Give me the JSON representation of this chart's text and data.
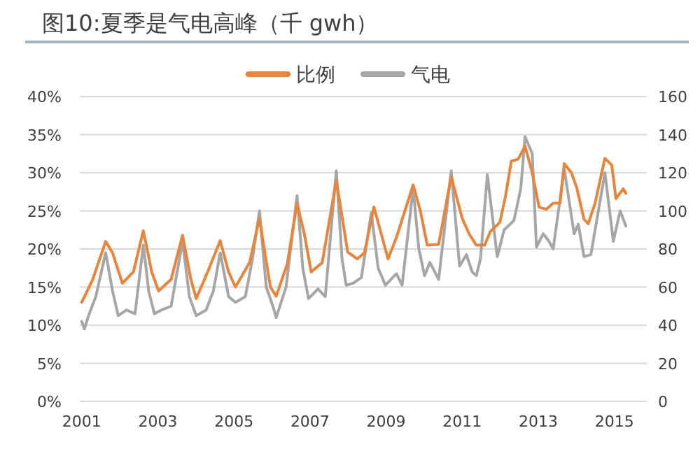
{
  "chart_data": {
    "type": "line",
    "title": "图10:夏季是气电高峰（千 gwh）",
    "xlim": [
      2000.95,
      2015.85
    ],
    "xticks": [
      2001,
      2003,
      2005,
      2007,
      2009,
      2011,
      2013,
      2015
    ],
    "ylim": [
      0,
      40
    ],
    "yticks": [
      {
        "value": 0,
        "label": "0%"
      },
      {
        "value": 5,
        "label": "5%"
      },
      {
        "value": 10,
        "label": "10%"
      },
      {
        "value": 15,
        "label": "15%"
      },
      {
        "value": 20,
        "label": "20%"
      },
      {
        "value": 25,
        "label": "25%"
      },
      {
        "value": 30,
        "label": "30%"
      },
      {
        "value": 35,
        "label": "35%"
      },
      {
        "value": 40,
        "label": "40%"
      }
    ],
    "y2lim": [
      0,
      160
    ],
    "y2ticks": [
      0,
      20,
      40,
      60,
      80,
      100,
      120,
      140,
      160
    ],
    "grid": "y",
    "legend": "top",
    "line_style": "solid",
    "marker": "none",
    "series": [
      {
        "name": "比例",
        "color": "#e8853a",
        "x": [
          2001.0,
          2001.29,
          2001.63,
          2001.81,
          2002.07,
          2002.36,
          2002.62,
          2002.84,
          2003.02,
          2003.35,
          2003.65,
          2003.87,
          2004.01,
          2004.31,
          2004.64,
          2004.86,
          2005.04,
          2005.41,
          2005.67,
          2005.96,
          2006.11,
          2006.4,
          2006.66,
          2006.85,
          2007.03,
          2007.32,
          2007.69,
          2007.99,
          2008.24,
          2008.43,
          2008.68,
          2008.87,
          2009.05,
          2009.27,
          2009.71,
          2009.9,
          2010.08,
          2010.38,
          2010.71,
          2011.0,
          2011.18,
          2011.37,
          2011.59,
          2011.74,
          2011.99,
          2012.14,
          2012.29,
          2012.47,
          2012.65,
          2012.84,
          2013.02,
          2013.21,
          2013.39,
          2013.57,
          2013.68,
          2013.87,
          2014.01,
          2014.2,
          2014.31,
          2014.49,
          2014.75,
          2014.93,
          2015.04,
          2015.23,
          2015.3
        ],
        "values": [
          13,
          16,
          21,
          19.5,
          15.5,
          17,
          22.4,
          17,
          14.5,
          16,
          21.8,
          16,
          13.5,
          17,
          21.1,
          17,
          15,
          18.2,
          24,
          15,
          13.8,
          18,
          26,
          22,
          17,
          18.2,
          29,
          19.6,
          18.7,
          19.5,
          25.5,
          22,
          18.7,
          21.5,
          28.4,
          25,
          20.5,
          20.6,
          29.5,
          24,
          22,
          20.5,
          20.5,
          22.3,
          23.5,
          27,
          31.5,
          31.8,
          33.5,
          30,
          25.5,
          25.2,
          26,
          26,
          31.2,
          30,
          28,
          23.9,
          23.3,
          26,
          31.9,
          31,
          26.6,
          27.9,
          27.3
        ]
      },
      {
        "name": "气电",
        "color": "#a6a6a6",
        "axis": "y2",
        "x": [
          2001.0,
          2001.07,
          2001.18,
          2001.37,
          2001.63,
          2001.81,
          2001.96,
          2002.18,
          2002.4,
          2002.62,
          2002.76,
          2002.91,
          2003.1,
          2003.35,
          2003.65,
          2003.83,
          2004.01,
          2004.27,
          2004.46,
          2004.64,
          2004.86,
          2005.04,
          2005.3,
          2005.49,
          2005.67,
          2005.85,
          2006.04,
          2006.11,
          2006.37,
          2006.66,
          2006.81,
          2006.96,
          2007.21,
          2007.4,
          2007.69,
          2007.84,
          2007.95,
          2008.13,
          2008.35,
          2008.61,
          2008.79,
          2008.98,
          2009.27,
          2009.42,
          2009.71,
          2009.86,
          2010.01,
          2010.15,
          2010.38,
          2010.71,
          2010.93,
          2011.11,
          2011.26,
          2011.37,
          2011.48,
          2011.66,
          2011.92,
          2012.1,
          2012.36,
          2012.54,
          2012.65,
          2012.84,
          2012.95,
          2013.13,
          2013.28,
          2013.39,
          2013.68,
          2013.94,
          2014.05,
          2014.2,
          2014.38,
          2014.75,
          2014.97,
          2015.15,
          2015.3
        ],
        "values": [
          42,
          38,
          45,
          55,
          78,
          58,
          45,
          48,
          46,
          82,
          58,
          46,
          48,
          50,
          84,
          55,
          45,
          48,
          58,
          78,
          55,
          52,
          55,
          75,
          100,
          60,
          49,
          44,
          60,
          108,
          70,
          54,
          59,
          55,
          121,
          75,
          61,
          62,
          65,
          99,
          70,
          61,
          67,
          61,
          112,
          80,
          66,
          73,
          64,
          121,
          71,
          77,
          68,
          66,
          75,
          119,
          76,
          90,
          95,
          112,
          139,
          130,
          81,
          88,
          84,
          80,
          122,
          88,
          93,
          76,
          77,
          120,
          84,
          100,
          92
        ]
      }
    ]
  }
}
